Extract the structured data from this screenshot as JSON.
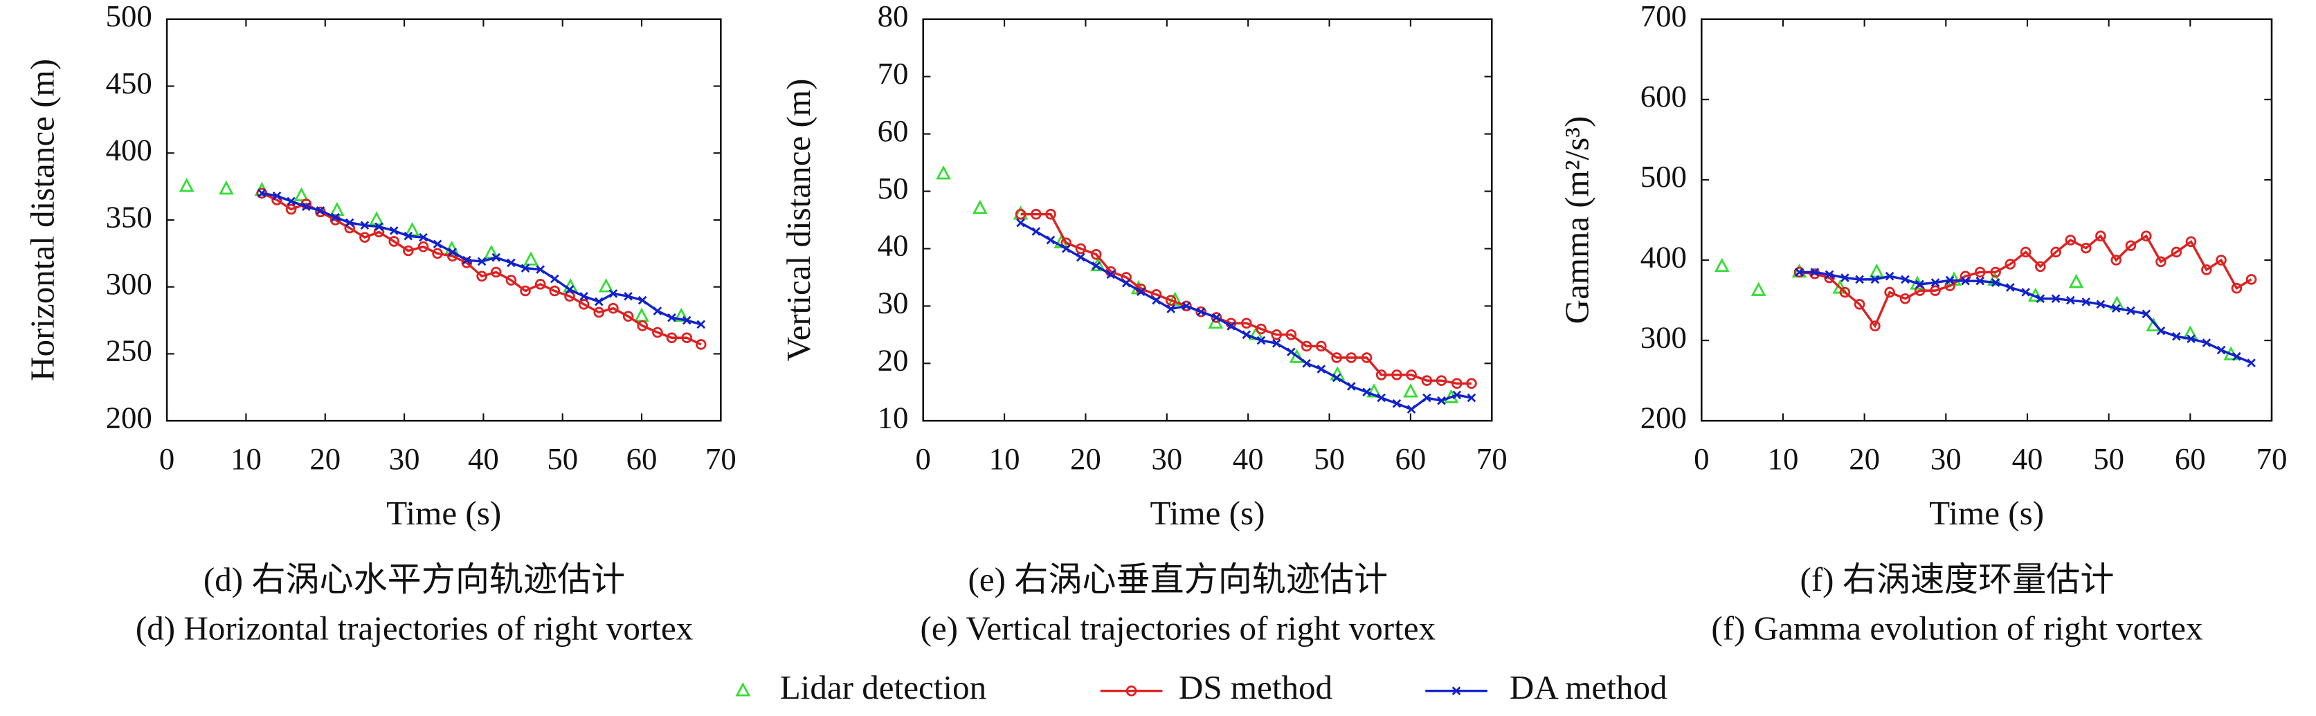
{
  "chart_data": [
    {
      "type": "line",
      "title": "(d) 右涡心水平方向轨迹估计",
      "subtitle": "(d) Horizontal trajectories of right vortex",
      "x_label": "Time (s)",
      "y_label": "Horizontal distance (m)",
      "xlim": [
        0,
        70
      ],
      "xticks": [
        0,
        10,
        20,
        30,
        40,
        50,
        60,
        70
      ],
      "ylim": [
        200,
        500
      ],
      "yticks": [
        200,
        250,
        300,
        350,
        400,
        450,
        500
      ],
      "series": [
        {
          "name": "Lidar detection",
          "color": "#33dd33",
          "marker": "triangle",
          "x": [
            2.5,
            7.5,
            12,
            17,
            21.5,
            26.5,
            31,
            36,
            41,
            46,
            51,
            55.5,
            60,
            65
          ],
          "values": [
            375,
            373,
            372,
            368,
            357,
            350,
            342,
            328,
            325,
            320,
            300,
            300,
            278,
            278
          ]
        },
        {
          "name": "DS method",
          "color": "#dd2222",
          "marker": "circle",
          "x": [
            12,
            13.9,
            15.7,
            17.6,
            19.4,
            21.3,
            23.1,
            25,
            26.8,
            28.7,
            30.5,
            32.4,
            34.2,
            36.1,
            37.9,
            39.8,
            41.6,
            43.5,
            45.3,
            47.2,
            49,
            50.9,
            52.7,
            54.6,
            56.4,
            58.3,
            60.1,
            62,
            63.8,
            65.7,
            67.5
          ],
          "values": [
            370,
            365,
            358,
            362,
            356,
            350,
            344,
            337,
            341,
            334,
            327,
            330,
            325,
            323,
            318,
            308,
            311,
            305,
            297,
            302,
            297,
            293,
            287,
            281,
            284,
            278,
            271,
            266,
            262,
            262,
            257
          ]
        },
        {
          "name": "DA method",
          "color": "#1122cc",
          "marker": "cross",
          "x": [
            12,
            13.9,
            15.7,
            17.6,
            19.4,
            21.3,
            23.1,
            25,
            26.8,
            28.7,
            30.5,
            32.4,
            34.2,
            36.1,
            37.9,
            39.8,
            41.6,
            43.5,
            45.3,
            47.2,
            49,
            50.9,
            52.7,
            54.6,
            56.4,
            58.3,
            60.1,
            62,
            63.8,
            65.7,
            67.5
          ],
          "values": [
            370,
            368,
            364,
            360,
            357,
            352,
            348,
            346,
            345,
            342,
            338,
            337,
            332,
            326,
            320,
            319,
            322,
            318,
            314,
            313,
            306,
            298,
            293,
            289,
            295,
            293,
            290,
            282,
            277,
            275,
            272
          ]
        }
      ]
    },
    {
      "type": "line",
      "title": "(e) 右涡心垂直方向轨迹估计",
      "subtitle": "(e) Vertical trajectories of right vortex",
      "x_label": "Time (s)",
      "y_label": "Vertical distance (m)",
      "xlim": [
        0,
        70
      ],
      "xticks": [
        0,
        10,
        20,
        30,
        40,
        50,
        60,
        70
      ],
      "ylim": [
        10,
        80
      ],
      "yticks": [
        10,
        20,
        30,
        40,
        50,
        60,
        70,
        80
      ],
      "series": [
        {
          "color": "#33dd33",
          "marker": "triangle",
          "x": [
            2.5,
            7,
            12,
            17,
            21.5,
            26.5,
            31,
            36,
            41,
            46,
            51,
            55.5,
            60,
            65
          ],
          "values": [
            53,
            47,
            46,
            41,
            37,
            33,
            31,
            27,
            25,
            21,
            18,
            15,
            15,
            14
          ]
        },
        {
          "color": "#dd2222",
          "marker": "circle",
          "x": [
            12,
            13.9,
            15.7,
            17.6,
            19.4,
            21.3,
            23.1,
            25,
            26.8,
            28.7,
            30.5,
            32.4,
            34.2,
            36.1,
            37.9,
            39.8,
            41.6,
            43.5,
            45.3,
            47.2,
            49,
            50.9,
            52.7,
            54.6,
            56.4,
            58.3,
            60.1,
            62,
            63.8,
            65.7,
            67.5
          ],
          "values": [
            46,
            46,
            46,
            41,
            40,
            39,
            36,
            35,
            33,
            32,
            31,
            30,
            29,
            28,
            27,
            27,
            26,
            25,
            25,
            23,
            23,
            21,
            21,
            21,
            18,
            18,
            18,
            17,
            17,
            16.5,
            16.5
          ]
        },
        {
          "color": "#1122cc",
          "marker": "cross",
          "x": [
            12,
            13.9,
            15.7,
            17.6,
            19.4,
            21.3,
            23.1,
            25,
            26.8,
            28.7,
            30.5,
            32.4,
            34.2,
            36.1,
            37.9,
            39.8,
            41.6,
            43.5,
            45.3,
            47.2,
            49,
            50.9,
            52.7,
            54.6,
            56.4,
            58.3,
            60.1,
            62,
            63.8,
            65.7,
            67.5
          ],
          "values": [
            44.5,
            43,
            41.5,
            40,
            38.5,
            37,
            35.5,
            34,
            32.5,
            31,
            29.5,
            30,
            29,
            28,
            26.5,
            25,
            24,
            23.5,
            22,
            20,
            19,
            17.5,
            16,
            15,
            14,
            13,
            12,
            14,
            13.5,
            14.5,
            14
          ]
        }
      ]
    },
    {
      "type": "line",
      "title": "(f) 右涡速度环量估计",
      "subtitle": "(f) Gamma evolution of right vortex",
      "x_label": "Time (s)",
      "y_label": "Gamma (m²/s³)",
      "xlim": [
        0,
        70
      ],
      "xticks": [
        0,
        10,
        20,
        30,
        40,
        50,
        60,
        70
      ],
      "ylim": [
        200,
        700
      ],
      "yticks": [
        200,
        300,
        400,
        500,
        600,
        700
      ],
      "series": [
        {
          "color": "#33dd33",
          "marker": "triangle",
          "x": [
            2.5,
            7,
            12,
            17,
            21.5,
            26.5,
            31,
            36,
            41,
            46,
            51,
            55.5,
            60,
            65
          ],
          "values": [
            392,
            362,
            385,
            365,
            385,
            370,
            375,
            375,
            355,
            372,
            345,
            318,
            308,
            282
          ]
        },
        {
          "color": "#dd2222",
          "marker": "circle",
          "x": [
            12,
            13.9,
            15.7,
            17.6,
            19.4,
            21.3,
            23.1,
            25,
            26.8,
            28.7,
            30.5,
            32.4,
            34.2,
            36.1,
            37.9,
            39.8,
            41.6,
            43.5,
            45.3,
            47.2,
            49,
            50.9,
            52.7,
            54.6,
            56.4,
            58.3,
            60.1,
            62,
            63.8,
            65.7,
            67.5
          ],
          "values": [
            385,
            383,
            378,
            360,
            345,
            318,
            360,
            352,
            362,
            362,
            368,
            380,
            385,
            385,
            395,
            410,
            392,
            410,
            425,
            415,
            430,
            400,
            418,
            430,
            398,
            410,
            423,
            388,
            400,
            365,
            376
          ]
        },
        {
          "color": "#1122cc",
          "marker": "cross",
          "x": [
            12,
            13.9,
            15.7,
            17.6,
            19.4,
            21.3,
            23.1,
            25,
            26.8,
            28.7,
            30.5,
            32.4,
            34.2,
            36.1,
            37.9,
            39.8,
            41.6,
            43.5,
            45.3,
            47.2,
            49,
            50.9,
            52.7,
            54.6,
            56.4,
            58.3,
            60.1,
            62,
            63.8,
            65.7,
            67.5
          ],
          "values": [
            385,
            385,
            382,
            378,
            376,
            376,
            380,
            376,
            370,
            372,
            375,
            374,
            374,
            372,
            366,
            360,
            352,
            352,
            350,
            348,
            345,
            340,
            337,
            333,
            312,
            305,
            302,
            297,
            288,
            280,
            272
          ]
        }
      ]
    }
  ]
}
